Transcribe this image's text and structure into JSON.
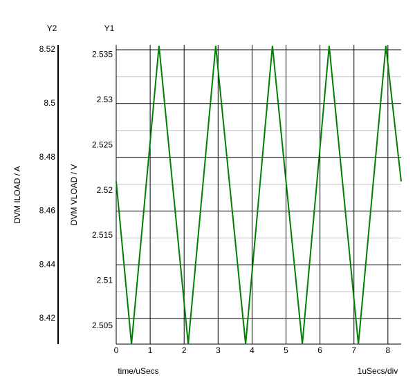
{
  "chart_data": {
    "type": "line",
    "y2_axis_name": "Y2",
    "y_axis_name": "Y1",
    "y2_label": "DVM ILOAD / A",
    "y_label": "DVM VLOAD / V",
    "x_label": "time/uSecs",
    "x_scale_note": "1uSecs/div",
    "x": [
      0,
      0.45,
      1.26,
      2.12,
      2.93,
      3.81,
      4.6,
      5.48,
      6.27,
      7.13,
      7.94,
      8.39
    ],
    "series": [
      {
        "name": "DVM VLOAD",
        "color": "#008000",
        "values": [
          2.521,
          2.503,
          2.536,
          2.503,
          2.536,
          2.503,
          2.536,
          2.503,
          2.536,
          2.503,
          2.536,
          2.521
        ]
      }
    ],
    "xlim": [
      0,
      8.39
    ],
    "xticks": [
      0,
      1,
      2,
      3,
      4,
      5,
      6,
      7,
      8
    ],
    "ylim": [
      2.503,
      2.5361
    ],
    "yticks": [
      2.505,
      2.51,
      2.515,
      2.52,
      2.525,
      2.53,
      2.535
    ],
    "y2lim": [
      8.4105,
      8.5218
    ],
    "y2ticks": [
      8.42,
      8.44,
      8.46,
      8.48,
      8.5,
      8.52
    ],
    "grid": true
  }
}
